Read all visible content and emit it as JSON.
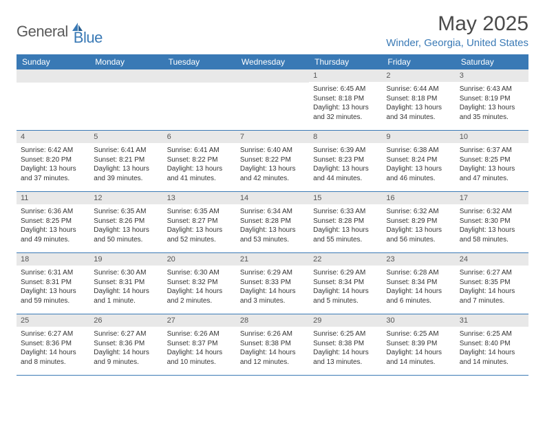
{
  "logo": {
    "text1": "General",
    "text2": "Blue"
  },
  "title": "May 2025",
  "location": "Winder, Georgia, United States",
  "colors": {
    "header_bg": "#3979b5",
    "header_text": "#ffffff",
    "daynum_bg": "#e8e8e8",
    "border": "#3979b5",
    "logo_gray": "#5a5a5a",
    "logo_blue": "#3979b5",
    "body_text": "#333333"
  },
  "day_headers": [
    "Sunday",
    "Monday",
    "Tuesday",
    "Wednesday",
    "Thursday",
    "Friday",
    "Saturday"
  ],
  "weeks": [
    [
      {
        "empty": true
      },
      {
        "empty": true
      },
      {
        "empty": true
      },
      {
        "empty": true
      },
      {
        "n": "1",
        "sunrise": "Sunrise: 6:45 AM",
        "sunset": "Sunset: 8:18 PM",
        "day1": "Daylight: 13 hours",
        "day2": "and 32 minutes."
      },
      {
        "n": "2",
        "sunrise": "Sunrise: 6:44 AM",
        "sunset": "Sunset: 8:18 PM",
        "day1": "Daylight: 13 hours",
        "day2": "and 34 minutes."
      },
      {
        "n": "3",
        "sunrise": "Sunrise: 6:43 AM",
        "sunset": "Sunset: 8:19 PM",
        "day1": "Daylight: 13 hours",
        "day2": "and 35 minutes."
      }
    ],
    [
      {
        "n": "4",
        "sunrise": "Sunrise: 6:42 AM",
        "sunset": "Sunset: 8:20 PM",
        "day1": "Daylight: 13 hours",
        "day2": "and 37 minutes."
      },
      {
        "n": "5",
        "sunrise": "Sunrise: 6:41 AM",
        "sunset": "Sunset: 8:21 PM",
        "day1": "Daylight: 13 hours",
        "day2": "and 39 minutes."
      },
      {
        "n": "6",
        "sunrise": "Sunrise: 6:41 AM",
        "sunset": "Sunset: 8:22 PM",
        "day1": "Daylight: 13 hours",
        "day2": "and 41 minutes."
      },
      {
        "n": "7",
        "sunrise": "Sunrise: 6:40 AM",
        "sunset": "Sunset: 8:22 PM",
        "day1": "Daylight: 13 hours",
        "day2": "and 42 minutes."
      },
      {
        "n": "8",
        "sunrise": "Sunrise: 6:39 AM",
        "sunset": "Sunset: 8:23 PM",
        "day1": "Daylight: 13 hours",
        "day2": "and 44 minutes."
      },
      {
        "n": "9",
        "sunrise": "Sunrise: 6:38 AM",
        "sunset": "Sunset: 8:24 PM",
        "day1": "Daylight: 13 hours",
        "day2": "and 46 minutes."
      },
      {
        "n": "10",
        "sunrise": "Sunrise: 6:37 AM",
        "sunset": "Sunset: 8:25 PM",
        "day1": "Daylight: 13 hours",
        "day2": "and 47 minutes."
      }
    ],
    [
      {
        "n": "11",
        "sunrise": "Sunrise: 6:36 AM",
        "sunset": "Sunset: 8:25 PM",
        "day1": "Daylight: 13 hours",
        "day2": "and 49 minutes."
      },
      {
        "n": "12",
        "sunrise": "Sunrise: 6:35 AM",
        "sunset": "Sunset: 8:26 PM",
        "day1": "Daylight: 13 hours",
        "day2": "and 50 minutes."
      },
      {
        "n": "13",
        "sunrise": "Sunrise: 6:35 AM",
        "sunset": "Sunset: 8:27 PM",
        "day1": "Daylight: 13 hours",
        "day2": "and 52 minutes."
      },
      {
        "n": "14",
        "sunrise": "Sunrise: 6:34 AM",
        "sunset": "Sunset: 8:28 PM",
        "day1": "Daylight: 13 hours",
        "day2": "and 53 minutes."
      },
      {
        "n": "15",
        "sunrise": "Sunrise: 6:33 AM",
        "sunset": "Sunset: 8:28 PM",
        "day1": "Daylight: 13 hours",
        "day2": "and 55 minutes."
      },
      {
        "n": "16",
        "sunrise": "Sunrise: 6:32 AM",
        "sunset": "Sunset: 8:29 PM",
        "day1": "Daylight: 13 hours",
        "day2": "and 56 minutes."
      },
      {
        "n": "17",
        "sunrise": "Sunrise: 6:32 AM",
        "sunset": "Sunset: 8:30 PM",
        "day1": "Daylight: 13 hours",
        "day2": "and 58 minutes."
      }
    ],
    [
      {
        "n": "18",
        "sunrise": "Sunrise: 6:31 AM",
        "sunset": "Sunset: 8:31 PM",
        "day1": "Daylight: 13 hours",
        "day2": "and 59 minutes."
      },
      {
        "n": "19",
        "sunrise": "Sunrise: 6:30 AM",
        "sunset": "Sunset: 8:31 PM",
        "day1": "Daylight: 14 hours",
        "day2": "and 1 minute."
      },
      {
        "n": "20",
        "sunrise": "Sunrise: 6:30 AM",
        "sunset": "Sunset: 8:32 PM",
        "day1": "Daylight: 14 hours",
        "day2": "and 2 minutes."
      },
      {
        "n": "21",
        "sunrise": "Sunrise: 6:29 AM",
        "sunset": "Sunset: 8:33 PM",
        "day1": "Daylight: 14 hours",
        "day2": "and 3 minutes."
      },
      {
        "n": "22",
        "sunrise": "Sunrise: 6:29 AM",
        "sunset": "Sunset: 8:34 PM",
        "day1": "Daylight: 14 hours",
        "day2": "and 5 minutes."
      },
      {
        "n": "23",
        "sunrise": "Sunrise: 6:28 AM",
        "sunset": "Sunset: 8:34 PM",
        "day1": "Daylight: 14 hours",
        "day2": "and 6 minutes."
      },
      {
        "n": "24",
        "sunrise": "Sunrise: 6:27 AM",
        "sunset": "Sunset: 8:35 PM",
        "day1": "Daylight: 14 hours",
        "day2": "and 7 minutes."
      }
    ],
    [
      {
        "n": "25",
        "sunrise": "Sunrise: 6:27 AM",
        "sunset": "Sunset: 8:36 PM",
        "day1": "Daylight: 14 hours",
        "day2": "and 8 minutes."
      },
      {
        "n": "26",
        "sunrise": "Sunrise: 6:27 AM",
        "sunset": "Sunset: 8:36 PM",
        "day1": "Daylight: 14 hours",
        "day2": "and 9 minutes."
      },
      {
        "n": "27",
        "sunrise": "Sunrise: 6:26 AM",
        "sunset": "Sunset: 8:37 PM",
        "day1": "Daylight: 14 hours",
        "day2": "and 10 minutes."
      },
      {
        "n": "28",
        "sunrise": "Sunrise: 6:26 AM",
        "sunset": "Sunset: 8:38 PM",
        "day1": "Daylight: 14 hours",
        "day2": "and 12 minutes."
      },
      {
        "n": "29",
        "sunrise": "Sunrise: 6:25 AM",
        "sunset": "Sunset: 8:38 PM",
        "day1": "Daylight: 14 hours",
        "day2": "and 13 minutes."
      },
      {
        "n": "30",
        "sunrise": "Sunrise: 6:25 AM",
        "sunset": "Sunset: 8:39 PM",
        "day1": "Daylight: 14 hours",
        "day2": "and 14 minutes."
      },
      {
        "n": "31",
        "sunrise": "Sunrise: 6:25 AM",
        "sunset": "Sunset: 8:40 PM",
        "day1": "Daylight: 14 hours",
        "day2": "and 14 minutes."
      }
    ]
  ]
}
